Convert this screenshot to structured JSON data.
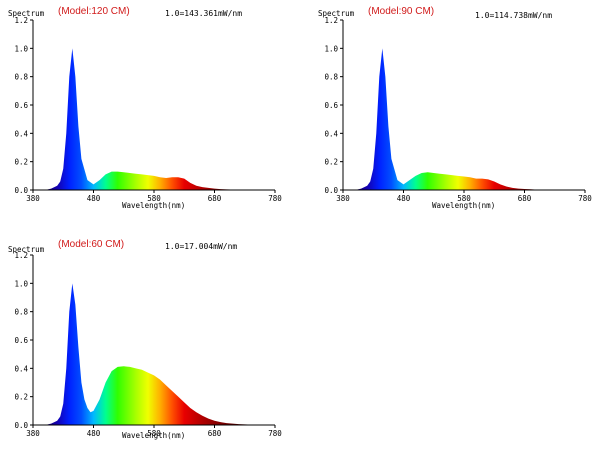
{
  "chart_data": [
    {
      "type": "area",
      "model_label": "(Model:120 CM)",
      "scale_label": "1.0=143.361mW/nm",
      "ylabel": "Spectrum",
      "xlabel": "Wavelength(nm)",
      "xlim": [
        380,
        780
      ],
      "ylim": [
        0,
        1.2
      ],
      "xticks": [
        "380",
        "480",
        "580",
        "680",
        "780"
      ],
      "yticks": [
        "0.0",
        "0.2",
        "0.4",
        "0.6",
        "0.8",
        "1.0",
        "1.2"
      ],
      "x": [
        380,
        400,
        410,
        420,
        425,
        430,
        435,
        440,
        445,
        450,
        455,
        460,
        470,
        480,
        490,
        500,
        510,
        520,
        530,
        540,
        550,
        560,
        570,
        580,
        590,
        600,
        610,
        620,
        630,
        640,
        650,
        660,
        670,
        680,
        690,
        700,
        720,
        740,
        760,
        780
      ],
      "y": [
        0,
        0,
        0.01,
        0.03,
        0.06,
        0.15,
        0.4,
        0.8,
        1.0,
        0.8,
        0.45,
        0.22,
        0.07,
        0.04,
        0.07,
        0.11,
        0.13,
        0.13,
        0.125,
        0.12,
        0.115,
        0.11,
        0.105,
        0.1,
        0.09,
        0.085,
        0.09,
        0.09,
        0.08,
        0.05,
        0.03,
        0.02,
        0.015,
        0.01,
        0.006,
        0.004,
        0.002,
        0.001,
        0,
        0
      ]
    },
    {
      "type": "area",
      "model_label": "(Model:90 CM)",
      "scale_label": "1.0=114.738mW/nm",
      "ylabel": "Spectrum",
      "xlabel": "Wavelength(nm)",
      "xlim": [
        380,
        780
      ],
      "ylim": [
        0,
        1.2
      ],
      "xticks": [
        "380",
        "480",
        "580",
        "680",
        "780"
      ],
      "yticks": [
        "0.0",
        "0.2",
        "0.4",
        "0.6",
        "0.8",
        "1.0",
        "1.2"
      ],
      "x": [
        380,
        400,
        410,
        420,
        425,
        430,
        435,
        440,
        445,
        450,
        455,
        460,
        470,
        480,
        490,
        500,
        510,
        520,
        530,
        540,
        550,
        560,
        570,
        580,
        590,
        600,
        610,
        620,
        630,
        640,
        650,
        660,
        670,
        680,
        690,
        700,
        720,
        740,
        760,
        780
      ],
      "y": [
        0,
        0,
        0.01,
        0.03,
        0.06,
        0.15,
        0.4,
        0.8,
        1.0,
        0.8,
        0.45,
        0.22,
        0.07,
        0.04,
        0.07,
        0.1,
        0.12,
        0.125,
        0.12,
        0.115,
        0.11,
        0.105,
        0.1,
        0.095,
        0.09,
        0.08,
        0.08,
        0.075,
        0.06,
        0.04,
        0.025,
        0.015,
        0.01,
        0.007,
        0.005,
        0.003,
        0.001,
        0,
        0,
        0
      ]
    },
    {
      "type": "area",
      "model_label": "(Model:60 CM)",
      "scale_label": "1.0=17.004mW/nm",
      "ylabel": "Spectrum",
      "xlabel": "Wavelength(nm)",
      "xlim": [
        380,
        780
      ],
      "ylim": [
        0,
        1.2
      ],
      "xticks": [
        "380",
        "480",
        "580",
        "680",
        "780"
      ],
      "yticks": [
        "0.0",
        "0.2",
        "0.4",
        "0.6",
        "0.8",
        "1.0",
        "1.2"
      ],
      "x": [
        380,
        400,
        410,
        420,
        425,
        430,
        435,
        440,
        445,
        450,
        455,
        460,
        465,
        470,
        475,
        480,
        490,
        500,
        510,
        520,
        530,
        540,
        550,
        560,
        570,
        580,
        590,
        600,
        610,
        620,
        630,
        640,
        650,
        660,
        670,
        680,
        690,
        700,
        720,
        740,
        760,
        780
      ],
      "y": [
        0,
        0,
        0.01,
        0.03,
        0.06,
        0.15,
        0.4,
        0.8,
        1.0,
        0.85,
        0.55,
        0.3,
        0.18,
        0.12,
        0.09,
        0.1,
        0.18,
        0.3,
        0.38,
        0.41,
        0.415,
        0.41,
        0.4,
        0.39,
        0.37,
        0.35,
        0.32,
        0.28,
        0.24,
        0.2,
        0.16,
        0.12,
        0.09,
        0.065,
        0.045,
        0.03,
        0.02,
        0.013,
        0.006,
        0.003,
        0.001,
        0
      ]
    }
  ]
}
